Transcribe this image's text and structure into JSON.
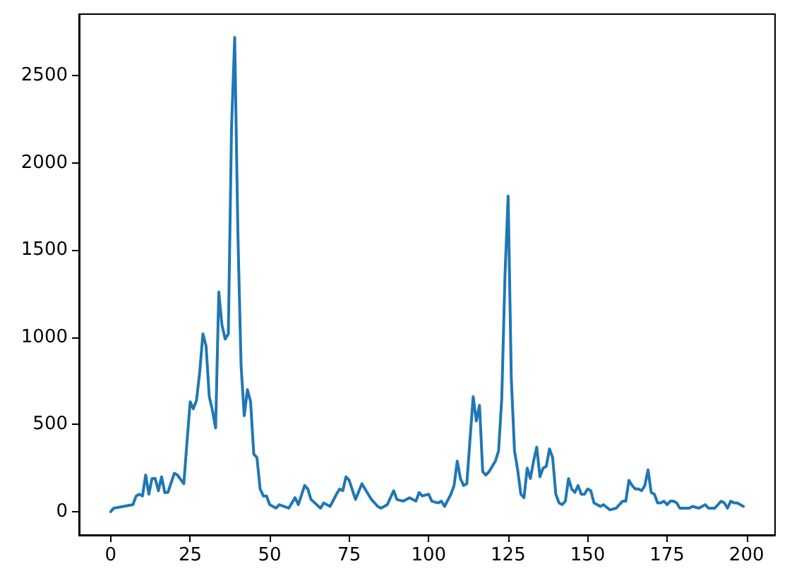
{
  "chart_data": {
    "type": "line",
    "color": "#1f77b4",
    "marker": "none",
    "line_style": "solid",
    "x": [
      0,
      1,
      4,
      7,
      8,
      9,
      10,
      11,
      12,
      13,
      14,
      15,
      16,
      17,
      18,
      20,
      21,
      23,
      24,
      25,
      26,
      27,
      28,
      29,
      30,
      31,
      32,
      33,
      34,
      35,
      36,
      37,
      38,
      39,
      40,
      41,
      42,
      43,
      44,
      45,
      46,
      47,
      48,
      49,
      50,
      52,
      53,
      56,
      58,
      59,
      61,
      62,
      63,
      66,
      67,
      69,
      71,
      72,
      73,
      74,
      75,
      77,
      79,
      81,
      82,
      84,
      85,
      87,
      89,
      90,
      92,
      94,
      96,
      97,
      98,
      100,
      101,
      103,
      104,
      105,
      107,
      108,
      109,
      110,
      111,
      112,
      114,
      115,
      116,
      117,
      118,
      119,
      121,
      122,
      123,
      124,
      125,
      126,
      127,
      128,
      129,
      130,
      131,
      132,
      133,
      134,
      135,
      136,
      137,
      138,
      139,
      140,
      141,
      142,
      143,
      144,
      145,
      146,
      147,
      148,
      149,
      150,
      151,
      152,
      154,
      155,
      157,
      159,
      161,
      162,
      163,
      164,
      165,
      166,
      167,
      168,
      169,
      170,
      171,
      172,
      173,
      174,
      175,
      176,
      177,
      178,
      179,
      180,
      182,
      183,
      185,
      186,
      187,
      188,
      190,
      191,
      192,
      193,
      194,
      195,
      196,
      197,
      198,
      199
    ],
    "values": [
      0,
      20,
      30,
      40,
      90,
      100,
      90,
      210,
      100,
      190,
      190,
      120,
      200,
      110,
      110,
      220,
      210,
      160,
      400,
      630,
      590,
      640,
      800,
      1020,
      950,
      660,
      580,
      480,
      1260,
      1070,
      990,
      1020,
      2200,
      2720,
      1600,
      840,
      550,
      700,
      630,
      330,
      310,
      130,
      90,
      90,
      40,
      20,
      40,
      20,
      80,
      40,
      150,
      130,
      70,
      20,
      50,
      30,
      100,
      130,
      120,
      200,
      180,
      70,
      160,
      100,
      70,
      30,
      20,
      40,
      120,
      70,
      60,
      80,
      60,
      110,
      90,
      100,
      60,
      50,
      60,
      30,
      100,
      150,
      290,
      190,
      150,
      160,
      660,
      520,
      610,
      230,
      210,
      230,
      290,
      350,
      650,
      1350,
      1810,
      760,
      350,
      240,
      100,
      80,
      250,
      190,
      290,
      370,
      200,
      250,
      260,
      360,
      310,
      100,
      50,
      40,
      60,
      190,
      130,
      110,
      150,
      100,
      100,
      130,
      120,
      50,
      30,
      40,
      10,
      20,
      60,
      60,
      180,
      150,
      130,
      130,
      120,
      150,
      240,
      110,
      100,
      50,
      50,
      60,
      40,
      60,
      60,
      50,
      20,
      20,
      20,
      30,
      20,
      30,
      40,
      20,
      20,
      40,
      60,
      50,
      20,
      60,
      50,
      50,
      40,
      30
    ],
    "xlim": [
      -9.95,
      208.95
    ],
    "ylim": [
      -134,
      2854
    ],
    "xticks": [
      0,
      25,
      50,
      75,
      100,
      125,
      150,
      175,
      200
    ],
    "yticks": [
      0,
      500,
      1000,
      1500,
      2000,
      2500
    ]
  }
}
